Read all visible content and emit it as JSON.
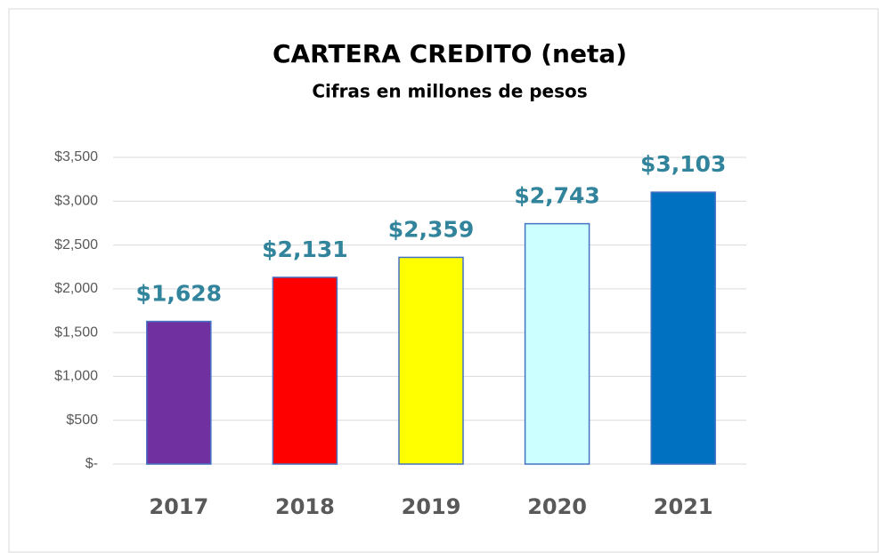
{
  "chart_data": {
    "type": "bar",
    "title": "CARTERA  CREDITO  (neta)",
    "subtitle": "Cifras  en millones  de pesos",
    "categories": [
      "2017",
      "2018",
      "2019",
      "2020",
      "2021"
    ],
    "values": [
      1628,
      2131,
      2359,
      2743,
      3103
    ],
    "value_labels": [
      "$1,628",
      "$2,131",
      "$2,359",
      "$2,743",
      "$3,103"
    ],
    "colors": [
      "#7030a0",
      "#ff0000",
      "#ffff00",
      "#ccffff",
      "#0070c0"
    ],
    "ylim": [
      0,
      3500
    ],
    "yticks": [
      {
        "value": 0,
        "label": "$-"
      },
      {
        "value": 500,
        "label": "$500"
      },
      {
        "value": 1000,
        "label": "$1,000"
      },
      {
        "value": 1500,
        "label": "$1,500"
      },
      {
        "value": 2000,
        "label": "$2,000"
      },
      {
        "value": 2500,
        "label": "$2,500"
      },
      {
        "value": 3000,
        "label": "$3,000"
      },
      {
        "value": 3500,
        "label": "$3,500"
      }
    ],
    "grid": true
  }
}
